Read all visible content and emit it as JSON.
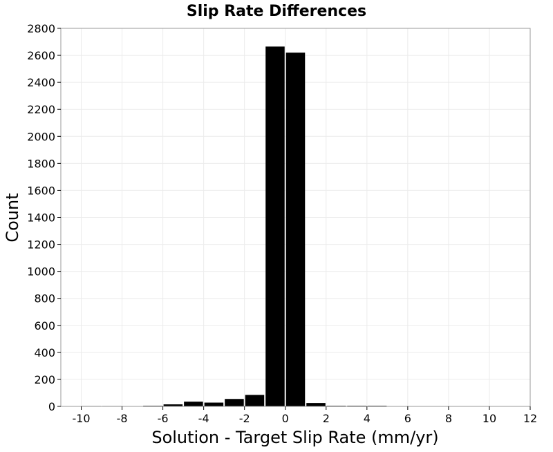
{
  "chart_data": {
    "type": "bar",
    "title": "Slip Rate Differences",
    "xlabel": "Solution - Target Slip Rate (mm/yr)",
    "ylabel": "Count",
    "xlim": [
      -11,
      12
    ],
    "ylim": [
      0,
      2800
    ],
    "xticks": [
      -10,
      -8,
      -6,
      -4,
      -2,
      0,
      2,
      4,
      6,
      8,
      10,
      12
    ],
    "yticks": [
      0,
      200,
      400,
      600,
      800,
      1000,
      1200,
      1400,
      1600,
      1800,
      2000,
      2200,
      2400,
      2600,
      2800
    ],
    "bin_width": 1,
    "bins": [
      {
        "x": -10,
        "count": 3
      },
      {
        "x": -9,
        "count": 3
      },
      {
        "x": -8,
        "count": 2
      },
      {
        "x": -7,
        "count": 5
      },
      {
        "x": -6,
        "count": 15
      },
      {
        "x": -5,
        "count": 35
      },
      {
        "x": -4,
        "count": 28
      },
      {
        "x": -3,
        "count": 55
      },
      {
        "x": -2,
        "count": 85
      },
      {
        "x": -1,
        "count": 2665
      },
      {
        "x": 0,
        "count": 2620
      },
      {
        "x": 1,
        "count": 25
      },
      {
        "x": 2,
        "count": 5
      },
      {
        "x": 3,
        "count": 5
      },
      {
        "x": 4,
        "count": 5
      },
      {
        "x": 5,
        "count": 2
      },
      {
        "x": 6,
        "count": 2
      },
      {
        "x": 7,
        "count": 2
      },
      {
        "x": 9,
        "count": 2
      },
      {
        "x": 10,
        "count": 2
      }
    ],
    "bar_color": "#000000",
    "grid": true,
    "grid_color": "#ebebeb",
    "frame_color": "#999999"
  }
}
